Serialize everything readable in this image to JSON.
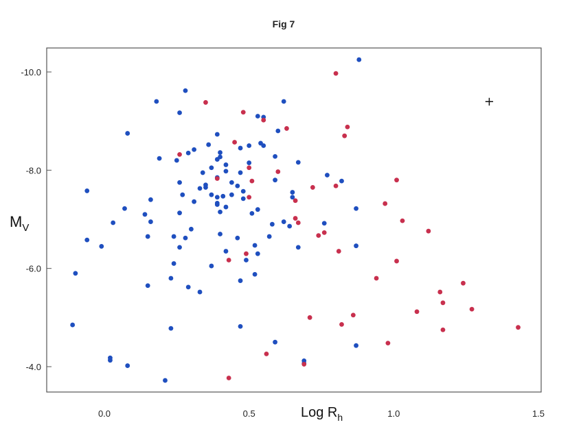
{
  "chart_data": {
    "type": "scatter",
    "title": "Fig 7",
    "xlabel": "Log R",
    "xlabel_sub": "h",
    "ylabel": "M",
    "ylabel_sub": "V",
    "xlim": [
      -0.2,
      1.5
    ],
    "ylim": [
      -3.6,
      -10.5
    ],
    "y_inverted": true,
    "grid": false,
    "legend": "none",
    "x_ticks": [
      {
        "value": 0.0,
        "label": "0.0"
      },
      {
        "value": 0.5,
        "label": "0.5"
      },
      {
        "value": 1.0,
        "label": "1.0"
      },
      {
        "value": 1.5,
        "label": "1.5"
      }
    ],
    "y_ticks": [
      {
        "value": -10.0,
        "label": "-10.0"
      },
      {
        "value": -8.0,
        "label": "-8.0"
      },
      {
        "value": -6.0,
        "label": "-6.0"
      },
      {
        "value": -4.0,
        "label": "-4.0"
      }
    ],
    "colors": {
      "blue": "#1f4fbf",
      "red": "#c8304e",
      "axis": "#555555"
    },
    "annotations": [
      {
        "text": "+",
        "x": 1.33,
        "y": -9.4
      }
    ],
    "series": [
      {
        "color": "#1f4fbf",
        "points": [
          [
            0.88,
            -10.25
          ],
          [
            0.28,
            -9.62
          ],
          [
            0.18,
            -9.4
          ],
          [
            0.62,
            -9.4
          ],
          [
            0.26,
            -9.17
          ],
          [
            0.53,
            -9.1
          ],
          [
            0.55,
            -9.08
          ],
          [
            0.08,
            -8.75
          ],
          [
            0.39,
            -8.73
          ],
          [
            0.6,
            -8.8
          ],
          [
            0.36,
            -8.52
          ],
          [
            0.54,
            -8.55
          ],
          [
            0.55,
            -8.5
          ],
          [
            0.5,
            -8.5
          ],
          [
            0.47,
            -8.45
          ],
          [
            0.31,
            -8.42
          ],
          [
            0.29,
            -8.35
          ],
          [
            0.4,
            -8.36
          ],
          [
            0.19,
            -8.24
          ],
          [
            0.25,
            -8.2
          ],
          [
            0.4,
            -8.27
          ],
          [
            0.39,
            -8.22
          ],
          [
            0.59,
            -8.28
          ],
          [
            0.42,
            -8.11
          ],
          [
            0.5,
            -8.15
          ],
          [
            0.67,
            -8.16
          ],
          [
            0.37,
            -8.05
          ],
          [
            0.34,
            -7.95
          ],
          [
            0.42,
            -7.98
          ],
          [
            0.47,
            -7.95
          ],
          [
            0.77,
            -7.9
          ],
          [
            0.39,
            -7.85
          ],
          [
            0.59,
            -7.8
          ],
          [
            0.26,
            -7.75
          ],
          [
            0.44,
            -7.75
          ],
          [
            0.82,
            -7.78
          ],
          [
            0.46,
            -7.68
          ],
          [
            0.35,
            -7.65
          ],
          [
            0.33,
            -7.63
          ],
          [
            0.35,
            -7.7
          ],
          [
            -0.06,
            -7.58
          ],
          [
            0.48,
            -7.57
          ],
          [
            0.65,
            -7.55
          ],
          [
            0.27,
            -7.5
          ],
          [
            0.37,
            -7.5
          ],
          [
            0.44,
            -7.5
          ],
          [
            0.39,
            -7.45
          ],
          [
            0.41,
            -7.47
          ],
          [
            0.65,
            -7.45
          ],
          [
            0.16,
            -7.4
          ],
          [
            0.48,
            -7.42
          ],
          [
            0.31,
            -7.36
          ],
          [
            0.39,
            -7.33
          ],
          [
            0.39,
            -7.3
          ],
          [
            0.07,
            -7.22
          ],
          [
            0.42,
            -7.25
          ],
          [
            0.87,
            -7.22
          ],
          [
            0.53,
            -7.2
          ],
          [
            0.26,
            -7.13
          ],
          [
            0.51,
            -7.12
          ],
          [
            0.14,
            -7.1
          ],
          [
            0.4,
            -7.15
          ],
          [
            0.03,
            -6.93
          ],
          [
            0.16,
            -6.95
          ],
          [
            0.62,
            -6.95
          ],
          [
            0.76,
            -6.92
          ],
          [
            0.58,
            -6.9
          ],
          [
            0.64,
            -6.86
          ],
          [
            0.3,
            -6.8
          ],
          [
            0.4,
            -6.7
          ],
          [
            0.15,
            -6.65
          ],
          [
            0.24,
            -6.65
          ],
          [
            0.28,
            -6.62
          ],
          [
            0.46,
            -6.62
          ],
          [
            0.57,
            -6.65
          ],
          [
            -0.06,
            -6.58
          ],
          [
            -0.01,
            -6.45
          ],
          [
            0.52,
            -6.47
          ],
          [
            0.26,
            -6.43
          ],
          [
            0.67,
            -6.43
          ],
          [
            0.87,
            -6.46
          ],
          [
            0.42,
            -6.35
          ],
          [
            0.53,
            -6.3
          ],
          [
            0.49,
            -6.17
          ],
          [
            0.24,
            -6.1
          ],
          [
            0.37,
            -6.05
          ],
          [
            -0.1,
            -5.9
          ],
          [
            0.52,
            -5.88
          ],
          [
            0.23,
            -5.8
          ],
          [
            0.47,
            -5.75
          ],
          [
            0.15,
            -5.65
          ],
          [
            0.29,
            -5.62
          ],
          [
            0.33,
            -5.52
          ],
          [
            -0.11,
            -4.85
          ],
          [
            0.47,
            -4.82
          ],
          [
            0.23,
            -4.78
          ],
          [
            0.59,
            -4.5
          ],
          [
            0.87,
            -4.43
          ],
          [
            0.02,
            -4.18
          ],
          [
            0.02,
            -4.13
          ],
          [
            0.69,
            -4.12
          ],
          [
            0.69,
            -4.07
          ],
          [
            0.08,
            -4.02
          ],
          [
            0.21,
            -3.72
          ]
        ]
      },
      {
        "color": "#c8304e",
        "points": [
          [
            0.8,
            -9.97
          ],
          [
            0.35,
            -9.38
          ],
          [
            0.48,
            -9.18
          ],
          [
            0.55,
            -9.02
          ],
          [
            0.84,
            -8.88
          ],
          [
            0.63,
            -8.85
          ],
          [
            0.83,
            -8.7
          ],
          [
            0.45,
            -8.57
          ],
          [
            0.26,
            -8.32
          ],
          [
            0.5,
            -8.05
          ],
          [
            0.6,
            -7.97
          ],
          [
            0.39,
            -7.83
          ],
          [
            1.01,
            -7.8
          ],
          [
            0.51,
            -7.78
          ],
          [
            0.8,
            -7.68
          ],
          [
            0.72,
            -7.65
          ],
          [
            0.5,
            -7.45
          ],
          [
            0.66,
            -7.38
          ],
          [
            0.97,
            -7.32
          ],
          [
            0.66,
            -7.02
          ],
          [
            1.03,
            -6.97
          ],
          [
            0.67,
            -6.93
          ],
          [
            1.12,
            -6.76
          ],
          [
            0.76,
            -6.73
          ],
          [
            0.74,
            -6.67
          ],
          [
            0.81,
            -6.35
          ],
          [
            0.49,
            -6.3
          ],
          [
            0.43,
            -6.17
          ],
          [
            1.01,
            -6.15
          ],
          [
            0.94,
            -5.8
          ],
          [
            1.24,
            -5.7
          ],
          [
            1.16,
            -5.52
          ],
          [
            1.17,
            -5.3
          ],
          [
            1.27,
            -5.17
          ],
          [
            1.08,
            -5.12
          ],
          [
            0.86,
            -5.05
          ],
          [
            0.71,
            -5.0
          ],
          [
            0.82,
            -4.86
          ],
          [
            1.43,
            -4.8
          ],
          [
            1.17,
            -4.75
          ],
          [
            0.98,
            -4.48
          ],
          [
            0.56,
            -4.26
          ],
          [
            0.69,
            -4.05
          ],
          [
            0.43,
            -3.77
          ]
        ]
      }
    ]
  }
}
